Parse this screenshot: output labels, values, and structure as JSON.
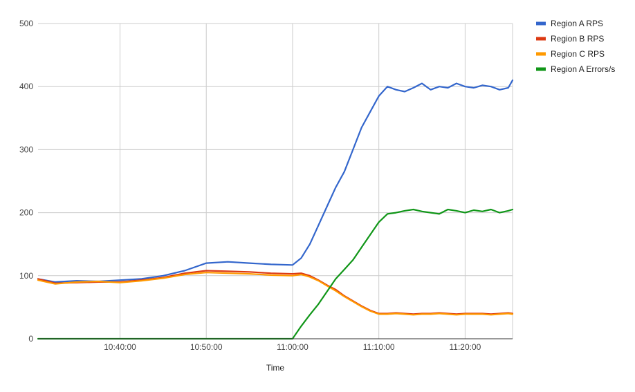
{
  "chart_data": {
    "type": "line",
    "title": "",
    "xlabel": "Time",
    "ylabel": "",
    "ylim": [
      0,
      500
    ],
    "xlim": [
      "10:30:30",
      "11:25:30"
    ],
    "yticks": [
      "0",
      "100",
      "200",
      "300",
      "400",
      "500"
    ],
    "xticks": [
      "10:40:00",
      "10:50:00",
      "11:00:00",
      "11:10:00",
      "11:20:00"
    ],
    "grid": true,
    "legend_position": "right",
    "x": [
      "10:30:30",
      "10:32:30",
      "10:35:00",
      "10:37:30",
      "10:40:00",
      "10:42:30",
      "10:45:00",
      "10:47:30",
      "10:50:00",
      "10:52:30",
      "10:55:00",
      "10:57:30",
      "11:00:00",
      "11:01:00",
      "11:02:00",
      "11:03:00",
      "11:04:00",
      "11:05:00",
      "11:06:00",
      "11:07:00",
      "11:08:00",
      "11:09:00",
      "11:10:00",
      "11:11:00",
      "11:12:00",
      "11:13:00",
      "11:14:00",
      "11:15:00",
      "11:16:00",
      "11:17:00",
      "11:18:00",
      "11:19:00",
      "11:20:00",
      "11:21:00",
      "11:22:00",
      "11:23:00",
      "11:24:00",
      "11:25:00",
      "11:25:30"
    ],
    "series": [
      {
        "name": "Region A RPS",
        "color": "#3366cc",
        "values": [
          95,
          90,
          92,
          91,
          93,
          95,
          100,
          108,
          120,
          122,
          120,
          118,
          117,
          128,
          150,
          180,
          210,
          240,
          265,
          300,
          335,
          360,
          385,
          400,
          395,
          392,
          398,
          405,
          395,
          400,
          398,
          405,
          400,
          398,
          402,
          400,
          395,
          398,
          410
        ]
      },
      {
        "name": "Region B RPS",
        "color": "#dc3912",
        "values": [
          95,
          88,
          89,
          90,
          90,
          93,
          97,
          104,
          108,
          107,
          106,
          104,
          103,
          104,
          100,
          93,
          85,
          78,
          68,
          60,
          52,
          45,
          40,
          40,
          41,
          40,
          39,
          40,
          40,
          41,
          40,
          39,
          40,
          40,
          40,
          39,
          40,
          41,
          40
        ]
      },
      {
        "name": "Region C RPS",
        "color": "#ff9900",
        "values": [
          93,
          87,
          90,
          91,
          89,
          92,
          96,
          102,
          105,
          104,
          103,
          101,
          100,
          102,
          98,
          92,
          84,
          76,
          67,
          59,
          51,
          44,
          39,
          39,
          40,
          39,
          38,
          39,
          39,
          40,
          39,
          38,
          39,
          39,
          39,
          38,
          39,
          40,
          39
        ]
      },
      {
        "name": "Region A Errors/s",
        "color": "#109618",
        "values": [
          0,
          0,
          0,
          0,
          0,
          0,
          0,
          0,
          0,
          0,
          0,
          0,
          0,
          20,
          38,
          55,
          75,
          95,
          110,
          125,
          145,
          165,
          185,
          198,
          200,
          203,
          205,
          202,
          200,
          198,
          205,
          203,
          200,
          204,
          202,
          205,
          200,
          203,
          205
        ]
      }
    ]
  }
}
